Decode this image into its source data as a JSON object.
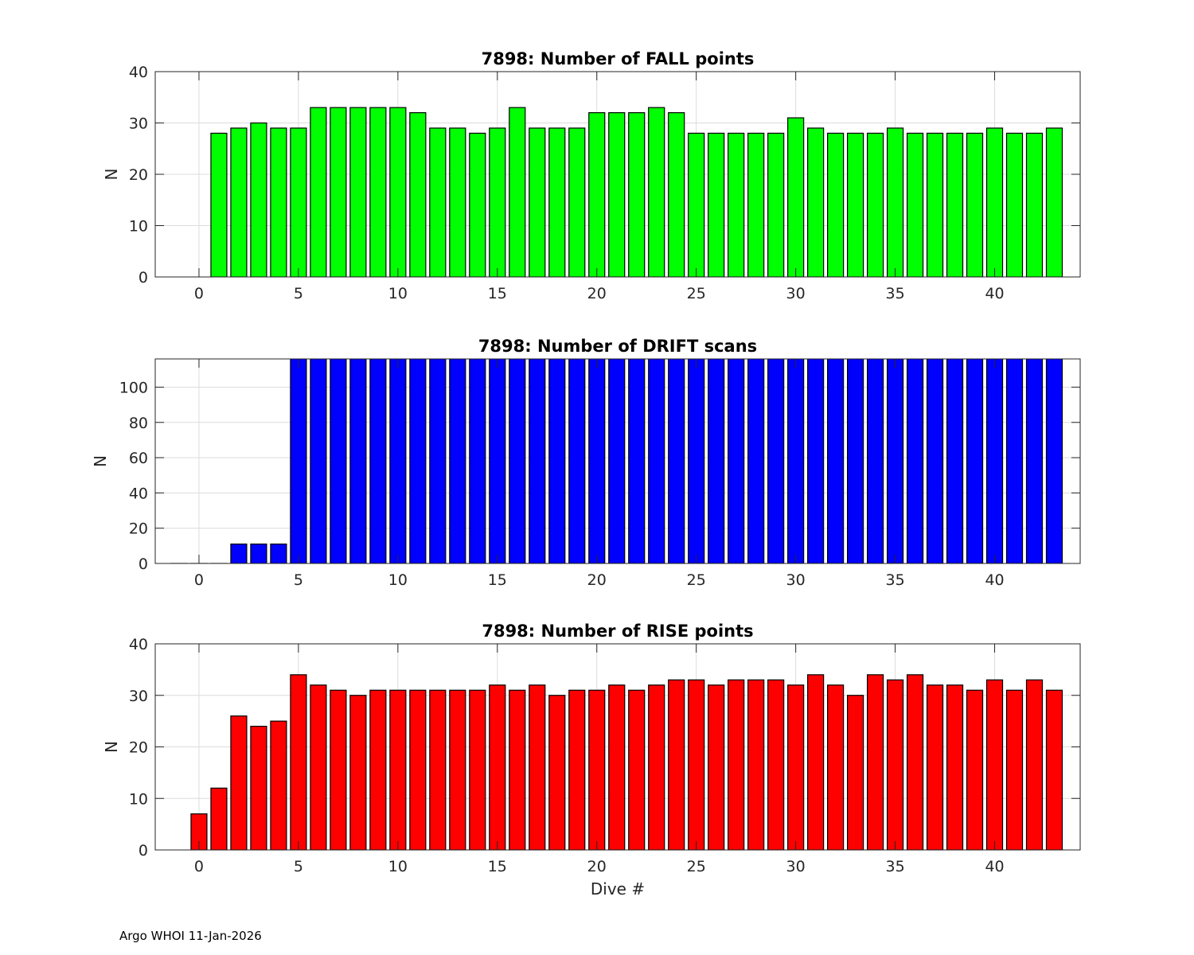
{
  "chart_data": [
    {
      "type": "bar",
      "title": "7898: Number of FALL points",
      "xlabel": "",
      "ylabel": "N",
      "xlim": [
        -2.2,
        44.3
      ],
      "ylim": [
        0,
        40
      ],
      "xticks": [
        0,
        5,
        10,
        15,
        20,
        25,
        30,
        35,
        40
      ],
      "yticks": [
        0,
        10,
        20,
        30,
        40
      ],
      "grid": true,
      "color": "#00ff00",
      "x": [
        1,
        2,
        3,
        4,
        5,
        6,
        7,
        8,
        9,
        10,
        11,
        12,
        13,
        14,
        15,
        16,
        17,
        18,
        19,
        20,
        21,
        22,
        23,
        24,
        25,
        26,
        27,
        28,
        29,
        30,
        31,
        32,
        33,
        34,
        35,
        36,
        37,
        38,
        39,
        40,
        41,
        42,
        43
      ],
      "values": [
        28,
        29,
        30,
        29,
        29,
        33,
        33,
        33,
        33,
        33,
        32,
        29,
        29,
        28,
        29,
        33,
        29,
        29,
        29,
        32,
        32,
        32,
        33,
        32,
        28,
        28,
        28,
        28,
        28,
        31,
        29,
        28,
        28,
        28,
        29,
        28,
        28,
        28,
        28,
        29,
        28,
        28,
        29
      ]
    },
    {
      "type": "bar",
      "title": "7898: Number of DRIFT scans",
      "xlabel": "",
      "ylabel": "N",
      "xlim": [
        -2.2,
        44.3
      ],
      "ylim": [
        0,
        116
      ],
      "xticks": [
        0,
        5,
        10,
        15,
        20,
        25,
        30,
        35,
        40
      ],
      "yticks": [
        0,
        20,
        40,
        60,
        80,
        100
      ],
      "grid": true,
      "color": "#0000ff",
      "x": [
        -1,
        0,
        1,
        2,
        3,
        4,
        5,
        6,
        7,
        8,
        9,
        10,
        11,
        12,
        13,
        14,
        15,
        16,
        17,
        18,
        19,
        20,
        21,
        22,
        23,
        24,
        25,
        26,
        27,
        28,
        29,
        30,
        31,
        32,
        33,
        34,
        35,
        36,
        37,
        38,
        39,
        40,
        41,
        42,
        43
      ],
      "values": [
        0,
        0,
        0,
        11,
        11,
        11,
        120,
        120,
        120,
        120,
        120,
        120,
        120,
        120,
        120,
        120,
        120,
        120,
        120,
        120,
        120,
        120,
        120,
        120,
        120,
        120,
        120,
        120,
        120,
        120,
        120,
        120,
        120,
        120,
        120,
        120,
        120,
        120,
        120,
        120,
        120,
        120,
        120,
        120,
        120
      ]
    },
    {
      "type": "bar",
      "title": "7898: Number of RISE points",
      "xlabel": "Dive #",
      "ylabel": "N",
      "xlim": [
        -2.2,
        44.3
      ],
      "ylim": [
        0,
        40
      ],
      "xticks": [
        0,
        5,
        10,
        15,
        20,
        25,
        30,
        35,
        40
      ],
      "yticks": [
        0,
        10,
        20,
        30,
        40
      ],
      "grid": true,
      "color": "#ff0000",
      "x": [
        0,
        1,
        2,
        3,
        4,
        5,
        6,
        7,
        8,
        9,
        10,
        11,
        12,
        13,
        14,
        15,
        16,
        17,
        18,
        19,
        20,
        21,
        22,
        23,
        24,
        25,
        26,
        27,
        28,
        29,
        30,
        31,
        32,
        33,
        34,
        35,
        36,
        37,
        38,
        39,
        40,
        41,
        42,
        43
      ],
      "values": [
        7,
        12,
        26,
        24,
        25,
        34,
        32,
        31,
        30,
        31,
        31,
        31,
        31,
        31,
        31,
        32,
        31,
        32,
        30,
        31,
        31,
        32,
        31,
        32,
        33,
        33,
        32,
        33,
        33,
        33,
        32,
        34,
        32,
        30,
        34,
        33,
        34,
        32,
        32,
        31,
        33,
        31,
        33,
        31
      ]
    }
  ],
  "footer": "Argo WHOI 11-Jan-2026"
}
